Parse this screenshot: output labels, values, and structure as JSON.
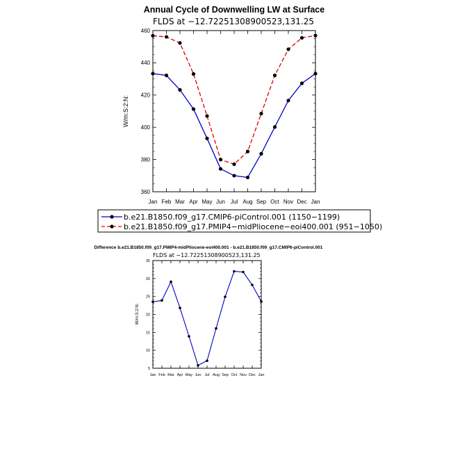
{
  "chart_data": [
    {
      "type": "line",
      "title": "Annual Cycle of Downwelling LW at Surface",
      "subtitle": "FLDS at −12.72251308900523,131.25",
      "ylabel": "W/m2",
      "ylabel_raw": "W/m:S:2:N:",
      "xlabel": "",
      "categories": [
        "Jan",
        "Feb",
        "Mar",
        "Apr",
        "May",
        "Jun",
        "Jul",
        "Aug",
        "Sep",
        "Oct",
        "Nov",
        "Dec",
        "Jan"
      ],
      "ylim": [
        360,
        460
      ],
      "yticks": [
        360,
        380,
        400,
        420,
        440,
        460
      ],
      "grid": false,
      "legend_position": "bottom",
      "series": [
        {
          "name": "b.e21.B1850.f09_g17.CMIP6-piControl.001 (1150−1199)",
          "color": "#0000cc",
          "dash": "solid",
          "values": [
            433.3,
            432.2,
            423.2,
            411.3,
            393.1,
            374.2,
            370.0,
            368.9,
            383.6,
            400.2,
            416.6,
            427.3,
            433.3
          ]
        },
        {
          "name": "b.e21.B1850.f09_g17.PMIP4−midPliocene−eoi400.001 (951−1050)",
          "color": "#dd0000",
          "dash": "dashed",
          "values": [
            456.8,
            456.1,
            452.3,
            433.1,
            407.0,
            380.0,
            377.1,
            385.0,
            408.5,
            432.2,
            448.4,
            455.5,
            456.9
          ]
        }
      ]
    },
    {
      "type": "line",
      "title": "Difference b.e21.B1850.f09_g17.PMIP4-midPliocene-eoi400.001 - b.e21.B1850.f09_g17.CMIP6-piControl.001",
      "subtitle": "FLDS at −12.72251308900523,131.25",
      "ylabel": "W/m2",
      "ylabel_raw": "W/m:S:2:N:",
      "xlabel": "",
      "categories": [
        "Jan",
        "Feb",
        "Mar",
        "Apr",
        "May",
        "Jun",
        "Jul",
        "Aug",
        "Sep",
        "Oct",
        "Nov",
        "Dec",
        "Jan"
      ],
      "ylim": [
        5,
        35
      ],
      "yticks": [
        5,
        10,
        15,
        20,
        25,
        30,
        35
      ],
      "grid": false,
      "series": [
        {
          "color": "#0000cc",
          "dash": "solid",
          "values": [
            23.5,
            23.9,
            29.1,
            21.8,
            13.9,
            5.8,
            7.1,
            16.1,
            24.9,
            32.0,
            31.8,
            28.2,
            23.6
          ]
        }
      ]
    }
  ]
}
